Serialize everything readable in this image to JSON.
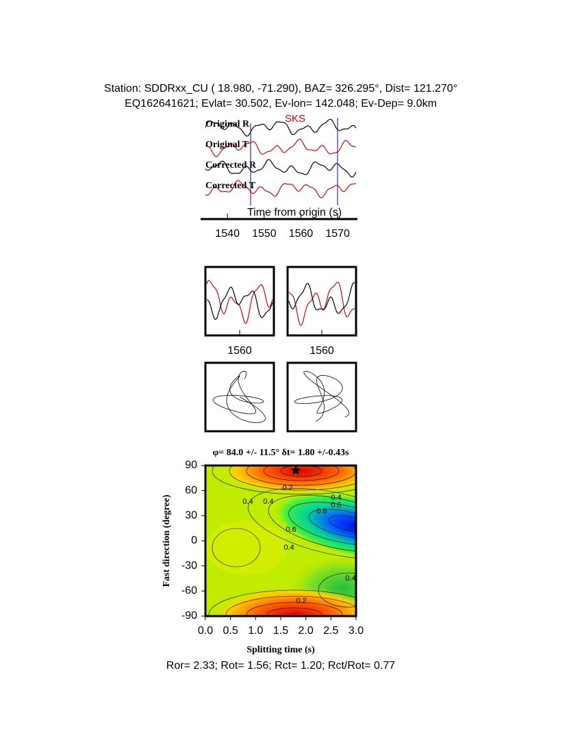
{
  "header": {
    "line1": "Station: SDDRxx_CU (  18.980,  -71.290), BAZ=  326.295°, Dist=  121.270°",
    "line2": "EQ162641621; Evlat=  30.502, Ev-lon= 142.048; Ev-Dep=  9.0km"
  },
  "traces": {
    "labels": [
      "Original R",
      "Original T",
      "Corrected R",
      "Corrected T"
    ],
    "phase": "SKS",
    "xlabel": "Time from origin (s)",
    "xlim": [
      1534,
      1575
    ],
    "xticks": [
      1540,
      1550,
      1560,
      1570
    ]
  },
  "windows": [
    {
      "xlim": [
        1550,
        1570
      ],
      "xticks": [
        1560
      ]
    },
    {
      "xlim": [
        1550,
        1570
      ],
      "xticks": [
        1560
      ]
    }
  ],
  "grid_search": {
    "title": "φ= 84.0 +/- 11.5° δt= 1.80 +/-0.43s",
    "xlabel": "Splitting time (s)",
    "ylabel": "Fast direction (degree)",
    "xlim": [
      0,
      3
    ],
    "ylim": [
      -90,
      90
    ],
    "xticks": [
      {
        "value": 0,
        "label": "0.0"
      },
      {
        "value": 0.5,
        "label": "0.5"
      },
      {
        "value": 1,
        "label": "1.0"
      },
      {
        "value": 1.5,
        "label": "1.5"
      },
      {
        "value": 2,
        "label": "2.0"
      },
      {
        "value": 2.5,
        "label": "2.5"
      },
      {
        "value": 3,
        "label": "3.0"
      }
    ],
    "yticks": [
      -90,
      -60,
      -30,
      0,
      30,
      60,
      90
    ],
    "best": {
      "x": 1.8,
      "y": 84.0
    },
    "contour_labels": [
      "0.2",
      "0.4",
      "0.4",
      "0.6",
      "0.8",
      "0.4",
      "0.6",
      "0.4",
      "0.2",
      "0.4"
    ]
  },
  "footer": "Ror= 2.33; Rot= 1.56; Rct= 1.20; Rct/Rot= 0.77"
}
